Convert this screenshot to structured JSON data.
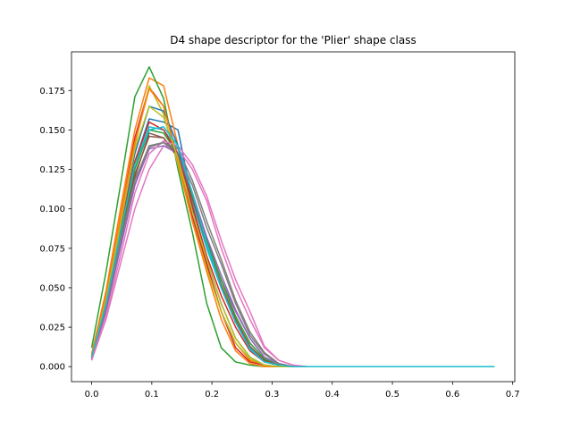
{
  "chart_data": {
    "type": "line",
    "title": "D4 shape descriptor for the 'Plier' shape class",
    "xlabel": "",
    "ylabel": "",
    "xlim": [
      -0.0335,
      0.7035
    ],
    "ylim": [
      -0.0095,
      0.1995
    ],
    "grid": false,
    "legend": "none",
    "x_ticks": [
      0.0,
      0.1,
      0.2,
      0.3,
      0.4,
      0.5,
      0.6,
      0.7
    ],
    "x_tick_labels": [
      "0.0",
      "0.1",
      "0.2",
      "0.3",
      "0.4",
      "0.5",
      "0.6",
      "0.7"
    ],
    "y_ticks": [
      0.0,
      0.025,
      0.05,
      0.075,
      0.1,
      0.125,
      0.15,
      0.175
    ],
    "y_tick_labels": [
      "0.000",
      "0.025",
      "0.050",
      "0.075",
      "0.100",
      "0.125",
      "0.150",
      "0.175"
    ],
    "x": [
      0.0,
      0.0239,
      0.0479,
      0.0718,
      0.0957,
      0.1196,
      0.1436,
      0.1675,
      0.1914,
      0.2154,
      0.2393,
      0.2632,
      0.2871,
      0.3111,
      0.335,
      0.3589,
      0.3829,
      0.4068,
      0.4307,
      0.4546,
      0.4786,
      0.5025,
      0.5264,
      0.5504,
      0.5743,
      0.5982,
      0.6221,
      0.6461,
      0.67
    ],
    "series": [
      {
        "color": "#1f77b4",
        "values": [
          0.006,
          0.04,
          0.085,
          0.13,
          0.157,
          0.155,
          0.15,
          0.105,
          0.075,
          0.05,
          0.03,
          0.012,
          0.004,
          0.001,
          0,
          0,
          0,
          0,
          0,
          0,
          0,
          0,
          0,
          0,
          0,
          0,
          0,
          0,
          0
        ]
      },
      {
        "color": "#ff7f0e",
        "values": [
          0.008,
          0.048,
          0.1,
          0.15,
          0.183,
          0.178,
          0.14,
          0.1,
          0.065,
          0.035,
          0.015,
          0.004,
          0.001,
          0,
          0,
          0,
          0,
          0,
          0,
          0,
          0,
          0,
          0,
          0,
          0,
          0,
          0,
          0,
          0
        ]
      },
      {
        "color": "#2ca02c",
        "values": [
          0.012,
          0.06,
          0.115,
          0.171,
          0.19,
          0.17,
          0.125,
          0.085,
          0.04,
          0.012,
          0.003,
          0.001,
          0,
          0,
          0,
          0,
          0,
          0,
          0,
          0,
          0,
          0,
          0,
          0,
          0,
          0,
          0,
          0,
          0
        ]
      },
      {
        "color": "#d62728",
        "values": [
          0.007,
          0.045,
          0.095,
          0.145,
          0.177,
          0.165,
          0.132,
          0.095,
          0.065,
          0.035,
          0.012,
          0.003,
          0.001,
          0,
          0,
          0,
          0,
          0,
          0,
          0,
          0,
          0,
          0,
          0,
          0,
          0,
          0,
          0,
          0
        ]
      },
      {
        "color": "#9467bd",
        "values": [
          0.005,
          0.035,
          0.075,
          0.115,
          0.14,
          0.142,
          0.135,
          0.11,
          0.08,
          0.055,
          0.035,
          0.018,
          0.006,
          0.002,
          0,
          0,
          0,
          0,
          0,
          0,
          0,
          0,
          0,
          0,
          0,
          0,
          0,
          0,
          0
        ]
      },
      {
        "color": "#8c564b",
        "values": [
          0.006,
          0.038,
          0.08,
          0.12,
          0.148,
          0.145,
          0.132,
          0.105,
          0.078,
          0.05,
          0.028,
          0.012,
          0.004,
          0.001,
          0,
          0,
          0,
          0,
          0,
          0,
          0,
          0,
          0,
          0,
          0,
          0,
          0,
          0,
          0
        ]
      },
      {
        "color": "#e377c2",
        "values": [
          0.004,
          0.03,
          0.065,
          0.1,
          0.125,
          0.14,
          0.138,
          0.125,
          0.105,
          0.075,
          0.05,
          0.03,
          0.012,
          0.004,
          0.001,
          0,
          0,
          0,
          0,
          0,
          0,
          0,
          0,
          0,
          0,
          0,
          0,
          0,
          0
        ]
      },
      {
        "color": "#7f7f7f",
        "values": [
          0.006,
          0.037,
          0.078,
          0.118,
          0.14,
          0.142,
          0.135,
          0.115,
          0.088,
          0.065,
          0.04,
          0.02,
          0.008,
          0.002,
          0,
          0,
          0,
          0,
          0,
          0,
          0,
          0,
          0,
          0,
          0,
          0,
          0,
          0,
          0
        ]
      },
      {
        "color": "#bcbd22",
        "values": [
          0.007,
          0.042,
          0.092,
          0.14,
          0.178,
          0.16,
          0.128,
          0.092,
          0.062,
          0.035,
          0.015,
          0.005,
          0.001,
          0,
          0,
          0,
          0,
          0,
          0,
          0,
          0,
          0,
          0,
          0,
          0,
          0,
          0,
          0,
          0
        ]
      },
      {
        "color": "#17becf",
        "values": [
          0.006,
          0.04,
          0.085,
          0.128,
          0.152,
          0.15,
          0.138,
          0.105,
          0.075,
          0.05,
          0.03,
          0.012,
          0.003,
          0.001,
          0,
          0,
          0,
          0,
          0,
          0,
          0,
          0,
          0,
          0,
          0,
          0,
          0,
          0,
          0
        ]
      },
      {
        "color": "#1f77b4",
        "values": [
          0.005,
          0.042,
          0.09,
          0.135,
          0.165,
          0.162,
          0.14,
          0.1,
          0.068,
          0.04,
          0.018,
          0.006,
          0.001,
          0,
          0,
          0,
          0,
          0,
          0,
          0,
          0,
          0,
          0,
          0,
          0,
          0,
          0,
          0,
          0
        ]
      },
      {
        "color": "#ff7f0e",
        "values": [
          0.007,
          0.045,
          0.095,
          0.142,
          0.176,
          0.165,
          0.13,
          0.092,
          0.06,
          0.03,
          0.01,
          0.002,
          0,
          0,
          0,
          0,
          0,
          0,
          0,
          0,
          0,
          0,
          0,
          0,
          0,
          0,
          0,
          0,
          0
        ]
      },
      {
        "color": "#2ca02c",
        "values": [
          0.006,
          0.04,
          0.082,
          0.125,
          0.15,
          0.148,
          0.135,
          0.108,
          0.08,
          0.055,
          0.032,
          0.015,
          0.005,
          0.001,
          0,
          0,
          0,
          0,
          0,
          0,
          0,
          0,
          0,
          0,
          0,
          0,
          0,
          0,
          0
        ]
      },
      {
        "color": "#d62728",
        "values": [
          0.006,
          0.041,
          0.088,
          0.13,
          0.155,
          0.15,
          0.135,
          0.102,
          0.07,
          0.045,
          0.025,
          0.01,
          0.003,
          0.001,
          0,
          0,
          0,
          0,
          0,
          0,
          0,
          0,
          0,
          0,
          0,
          0,
          0,
          0,
          0
        ]
      },
      {
        "color": "#9467bd",
        "values": [
          0.005,
          0.036,
          0.076,
          0.115,
          0.138,
          0.14,
          0.135,
          0.11,
          0.082,
          0.058,
          0.036,
          0.018,
          0.006,
          0.002,
          0,
          0,
          0,
          0,
          0,
          0,
          0,
          0,
          0,
          0,
          0,
          0,
          0,
          0,
          0
        ]
      },
      {
        "color": "#8c564b",
        "values": [
          0.006,
          0.038,
          0.08,
          0.122,
          0.146,
          0.145,
          0.134,
          0.106,
          0.078,
          0.052,
          0.03,
          0.013,
          0.004,
          0.001,
          0,
          0,
          0,
          0,
          0,
          0,
          0,
          0,
          0,
          0,
          0,
          0,
          0,
          0,
          0
        ]
      },
      {
        "color": "#e377c2",
        "values": [
          0.004,
          0.032,
          0.07,
          0.11,
          0.135,
          0.143,
          0.14,
          0.128,
          0.108,
          0.08,
          0.055,
          0.035,
          0.013,
          0.004,
          0.001,
          0,
          0,
          0,
          0,
          0,
          0,
          0,
          0,
          0,
          0,
          0,
          0,
          0,
          0
        ]
      },
      {
        "color": "#7f7f7f",
        "values": [
          0.006,
          0.038,
          0.08,
          0.118,
          0.139,
          0.142,
          0.138,
          0.118,
          0.092,
          0.068,
          0.042,
          0.022,
          0.009,
          0.002,
          0,
          0,
          0,
          0,
          0,
          0,
          0,
          0,
          0,
          0,
          0,
          0,
          0,
          0,
          0
        ]
      },
      {
        "color": "#bcbd22",
        "values": [
          0.006,
          0.042,
          0.09,
          0.138,
          0.165,
          0.158,
          0.132,
          0.098,
          0.068,
          0.04,
          0.018,
          0.006,
          0.001,
          0,
          0,
          0,
          0,
          0,
          0,
          0,
          0,
          0,
          0,
          0,
          0,
          0,
          0,
          0,
          0
        ]
      },
      {
        "color": "#17becf",
        "values": [
          0.006,
          0.04,
          0.085,
          0.128,
          0.15,
          0.152,
          0.14,
          0.11,
          0.078,
          0.05,
          0.028,
          0.011,
          0.003,
          0.001,
          0,
          0,
          0,
          0,
          0,
          0,
          0,
          0,
          0,
          0,
          0,
          0,
          0,
          0,
          0
        ]
      }
    ]
  }
}
